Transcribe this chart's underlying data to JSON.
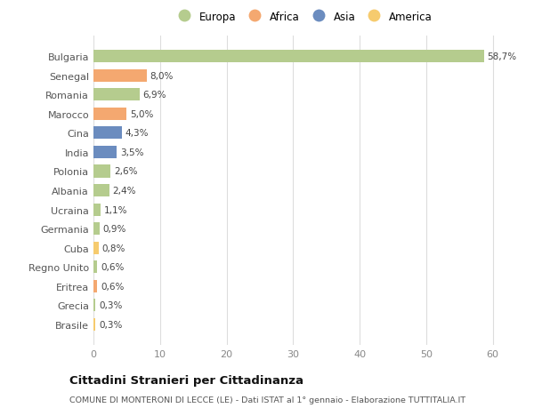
{
  "countries": [
    "Bulgaria",
    "Senegal",
    "Romania",
    "Marocco",
    "Cina",
    "India",
    "Polonia",
    "Albania",
    "Ucraina",
    "Germania",
    "Cuba",
    "Regno Unito",
    "Eritrea",
    "Grecia",
    "Brasile"
  ],
  "values": [
    58.7,
    8.0,
    6.9,
    5.0,
    4.3,
    3.5,
    2.6,
    2.4,
    1.1,
    0.9,
    0.8,
    0.6,
    0.6,
    0.3,
    0.3
  ],
  "labels": [
    "58,7%",
    "8,0%",
    "6,9%",
    "5,0%",
    "4,3%",
    "3,5%",
    "2,6%",
    "2,4%",
    "1,1%",
    "0,9%",
    "0,8%",
    "0,6%",
    "0,6%",
    "0,3%",
    "0,3%"
  ],
  "continents": [
    "Europa",
    "Africa",
    "Europa",
    "Africa",
    "Asia",
    "Asia",
    "Europa",
    "Europa",
    "Europa",
    "Europa",
    "America",
    "Europa",
    "Africa",
    "Europa",
    "America"
  ],
  "continent_colors": {
    "Europa": "#b5cc8e",
    "Africa": "#f4a870",
    "Asia": "#6b8cbf",
    "America": "#f6cb6e"
  },
  "legend_order": [
    "Europa",
    "Africa",
    "Asia",
    "America"
  ],
  "title": "Cittadini Stranieri per Cittadinanza",
  "subtitle": "COMUNE DI MONTERONI DI LECCE (LE) - Dati ISTAT al 1° gennaio - Elaborazione TUTTITALIA.IT",
  "xlim": [
    0,
    63
  ],
  "xticks": [
    0,
    10,
    20,
    30,
    40,
    50,
    60
  ],
  "bg_color": "#ffffff",
  "grid_color": "#dddddd",
  "bar_height": 0.65
}
